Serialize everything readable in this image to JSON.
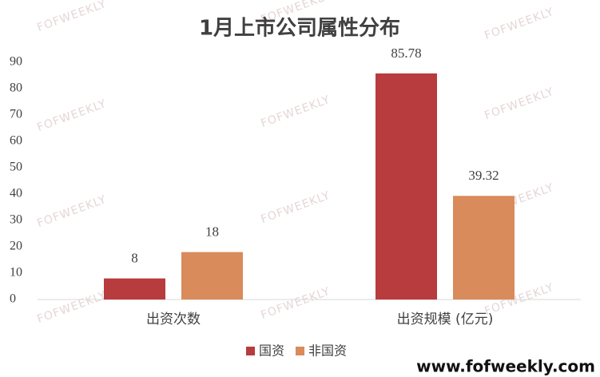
{
  "chart_data": {
    "type": "bar",
    "title": "1月上市公司属性分布",
    "categories": [
      "出资次数",
      "出资规模 (亿元)"
    ],
    "series": [
      {
        "name": "国资",
        "color": "#b83b3d",
        "values": [
          8,
          85.78
        ]
      },
      {
        "name": "非国资",
        "color": "#d98b5b",
        "values": [
          18,
          39.32
        ]
      }
    ],
    "ylim": [
      0,
      90
    ],
    "yticks": [
      0,
      10,
      20,
      30,
      40,
      50,
      60,
      70,
      80,
      90
    ],
    "grid": false,
    "legend": "bottom",
    "watermark": "FOFWEEKLY",
    "footer": "www.fofweekly.com"
  }
}
